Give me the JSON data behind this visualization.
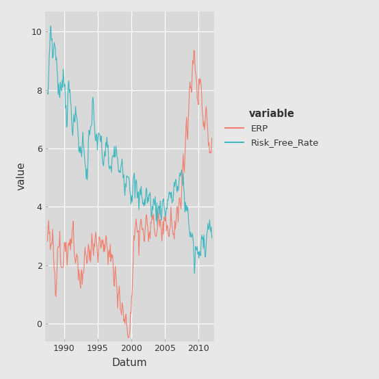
{
  "title": "",
  "xlabel": "Datum",
  "ylabel": "value",
  "legend_title": "variable",
  "legend_items": [
    "ERP",
    "Risk_Free_Rate"
  ],
  "erp_color": "#F08070",
  "rfr_color": "#40B8C0",
  "fig_bg_color": "#E8E8E8",
  "panel_bg": "#D9D9D9",
  "outer_bg": "#E8E8E8",
  "grid_color": "#FFFFFF",
  "tick_color": "#888888",
  "text_color": "#333333",
  "xlim": [
    1987.2,
    2012.3
  ],
  "ylim": [
    -0.6,
    10.7
  ],
  "yticks": [
    0,
    2,
    4,
    6,
    8,
    10
  ],
  "xticks": [
    1990,
    1995,
    2000,
    2005,
    2010
  ],
  "figsize": [
    5.54,
    5.54
  ],
  "dpi": 100
}
